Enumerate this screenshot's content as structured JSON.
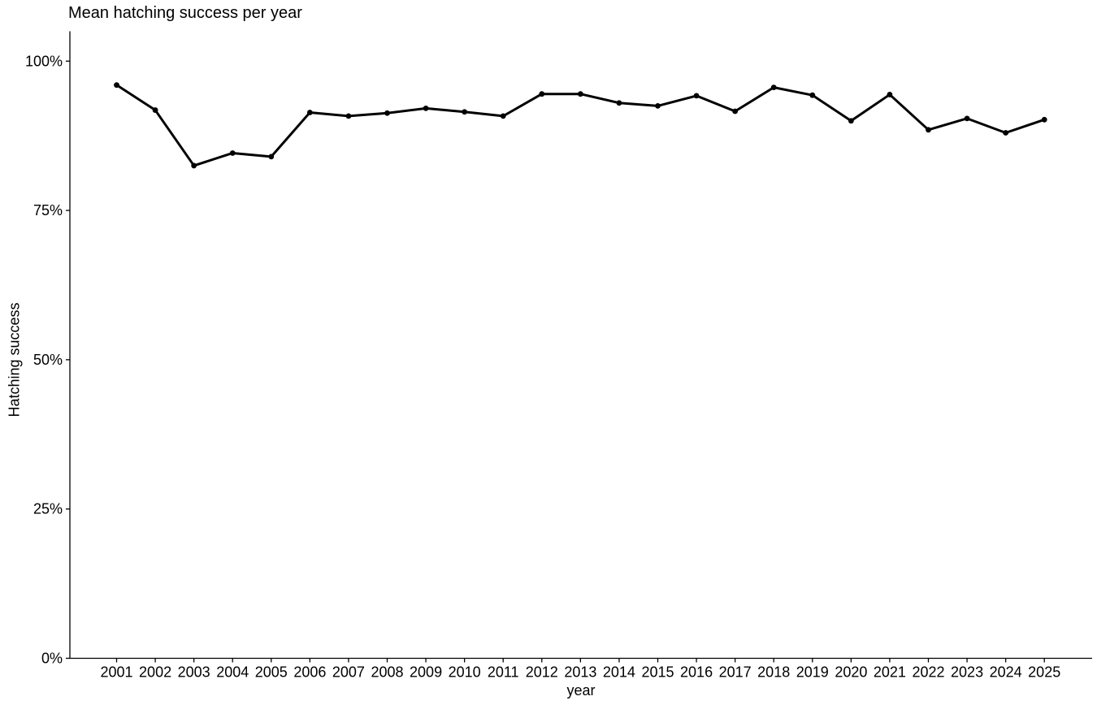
{
  "chart_data": {
    "type": "line",
    "title": "Mean hatching success per year",
    "xlabel": "year",
    "ylabel": "Hatching success",
    "x": [
      2001,
      2002,
      2003,
      2004,
      2005,
      2006,
      2007,
      2008,
      2009,
      2010,
      2011,
      2012,
      2013,
      2014,
      2015,
      2016,
      2017,
      2018,
      2019,
      2020,
      2021,
      2022,
      2023,
      2024,
      2025
    ],
    "series": [
      {
        "name": "mean hatching success (%)",
        "values": [
          96.0,
          91.8,
          82.5,
          84.6,
          84.0,
          91.4,
          90.8,
          91.3,
          92.1,
          91.5,
          90.8,
          94.5,
          94.5,
          93.0,
          92.5,
          94.2,
          91.6,
          95.6,
          94.3,
          90.0,
          94.4,
          88.5,
          90.4,
          88.0,
          90.2
        ]
      }
    ],
    "y_axis": {
      "tick_values": [
        0,
        25,
        50,
        75,
        100
      ],
      "tick_labels": [
        "0%",
        "25%",
        "50%",
        "75%",
        "100%"
      ],
      "range": [
        0,
        105
      ]
    },
    "grid": false,
    "legend": "none",
    "line_color": "#000000",
    "point_color": "#000000",
    "axis_color": "#000000",
    "text_color": "#000000",
    "background_color": "#FFFFFF"
  }
}
